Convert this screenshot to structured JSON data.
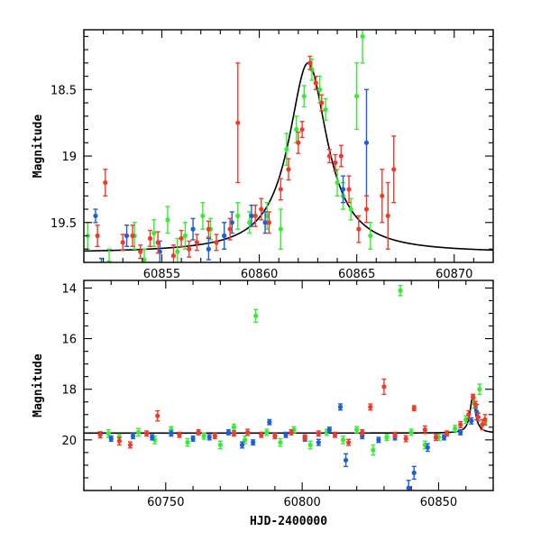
{
  "chart_data": [
    {
      "type": "scatter",
      "ylabel": "Magnitude",
      "xlabel": "",
      "xlim": [
        60851,
        60872
      ],
      "ylim": [
        19.8,
        18.05
      ],
      "inverted_y": true,
      "x_ticks": [
        60855,
        60860,
        60865,
        60870
      ],
      "x_tick_labels": [
        "60855",
        "60860",
        "60865",
        "60870"
      ],
      "y_ticks": [
        18.5,
        19,
        19.5
      ],
      "y_tick_labels": [
        "18.5",
        "19",
        "19.5"
      ],
      "model_curve": {
        "type": "lorentzian",
        "baseline": 19.73,
        "peak": 18.3,
        "t0": 60862.5,
        "width": 1.2,
        "color": "#000000"
      },
      "series_colors": {
        "green": "#33ee33",
        "blue": "#1a5fe0",
        "red": "#f23a2a"
      },
      "series": [
        {
          "color": "green",
          "points": [
            [
              60851.2,
              19.6,
              0.1
            ],
            [
              60851.9,
              19.85,
              0.08
            ],
            [
              60852.3,
              19.8,
              0.1
            ],
            [
              60853.6,
              19.6,
              0.1
            ],
            [
              60854.1,
              19.78,
              0.08
            ],
            [
              60854.6,
              19.58,
              0.1
            ],
            [
              60855.3,
              19.48,
              0.1
            ],
            [
              60855.8,
              19.72,
              0.1
            ],
            [
              60856.2,
              19.6,
              0.1
            ],
            [
              60857.1,
              19.45,
              0.1
            ],
            [
              60857.5,
              19.55,
              0.08
            ],
            [
              60858.2,
              19.6,
              0.1
            ],
            [
              60858.9,
              19.45,
              0.1
            ],
            [
              60859.5,
              19.5,
              0.08
            ],
            [
              60860.4,
              19.45,
              0.1
            ],
            [
              60861.1,
              19.55,
              0.15
            ],
            [
              60861.4,
              18.95,
              0.12
            ],
            [
              60861.9,
              18.8,
              0.1
            ],
            [
              60862.3,
              18.55,
              0.08
            ],
            [
              60862.7,
              18.35,
              0.08
            ],
            [
              60863.1,
              18.5,
              0.1
            ],
            [
              60863.4,
              18.65,
              0.08
            ],
            [
              60864.0,
              19.2,
              0.1
            ],
            [
              60864.3,
              19.3,
              0.1
            ],
            [
              60864.7,
              19.4,
              0.08
            ],
            [
              60865.0,
              18.55,
              0.25
            ],
            [
              60865.3,
              18.1,
              0.2
            ],
            [
              60865.7,
              19.6,
              0.1
            ]
          ]
        },
        {
          "color": "blue",
          "points": [
            [
              60851.6,
              19.45,
              0.05
            ],
            [
              60851.9,
              19.85,
              0.08
            ],
            [
              60853.2,
              19.6,
              0.08
            ],
            [
              60854.9,
              19.72,
              0.08
            ],
            [
              60856.6,
              19.55,
              0.08
            ],
            [
              60857.4,
              19.7,
              0.08
            ],
            [
              60858.2,
              19.6,
              0.1
            ],
            [
              60858.6,
              19.5,
              0.08
            ],
            [
              60859.6,
              19.45,
              0.08
            ],
            [
              60860.3,
              19.5,
              0.08
            ],
            [
              60864.3,
              19.25,
              0.1
            ],
            [
              60865.5,
              18.9,
              0.4
            ]
          ]
        },
        {
          "color": "red",
          "points": [
            [
              60851.7,
              19.6,
              0.08
            ],
            [
              60852.1,
              19.2,
              0.1
            ],
            [
              60853.0,
              19.65,
              0.06
            ],
            [
              60853.5,
              19.6,
              0.08
            ],
            [
              60853.9,
              19.72,
              0.05
            ],
            [
              60854.4,
              19.62,
              0.06
            ],
            [
              60854.8,
              19.65,
              0.08
            ],
            [
              60855.6,
              19.75,
              0.08
            ],
            [
              60856.0,
              19.62,
              0.06
            ],
            [
              60856.4,
              19.7,
              0.06
            ],
            [
              60856.8,
              19.65,
              0.06
            ],
            [
              60857.4,
              19.55,
              0.06
            ],
            [
              60857.8,
              19.65,
              0.06
            ],
            [
              60858.5,
              19.55,
              0.08
            ],
            [
              60858.9,
              18.75,
              0.45
            ],
            [
              60859.8,
              19.45,
              0.08
            ],
            [
              60860.1,
              19.4,
              0.08
            ],
            [
              60860.5,
              19.5,
              0.08
            ],
            [
              60861.1,
              19.25,
              0.08
            ],
            [
              60861.5,
              19.1,
              0.08
            ],
            [
              60862.0,
              18.9,
              0.08
            ],
            [
              60862.2,
              18.8,
              0.06
            ],
            [
              60862.6,
              18.3,
              0.05
            ],
            [
              60862.9,
              18.45,
              0.05
            ],
            [
              60863.2,
              18.6,
              0.06
            ],
            [
              60863.6,
              19.0,
              0.05
            ],
            [
              60863.9,
              19.05,
              0.06
            ],
            [
              60864.2,
              19.0,
              0.08
            ],
            [
              60864.6,
              19.25,
              0.1
            ],
            [
              60865.1,
              19.55,
              0.1
            ],
            [
              60865.5,
              19.4,
              0.1
            ],
            [
              60866.3,
              19.3,
              0.2
            ],
            [
              60866.6,
              19.45,
              0.25
            ],
            [
              60866.9,
              19.1,
              0.25
            ]
          ]
        }
      ]
    },
    {
      "type": "scatter",
      "ylabel": "Magnitude",
      "xlabel": "HJD-2400000",
      "xlim": [
        60720,
        60870
      ],
      "ylim": [
        22,
        13.7
      ],
      "inverted_y": true,
      "x_ticks": [
        60750,
        60800,
        60850
      ],
      "x_tick_labels": [
        "60750",
        "60800",
        "60850"
      ],
      "y_ticks": [
        14,
        16,
        18,
        20
      ],
      "y_tick_labels": [
        "14",
        "16",
        "18",
        "20"
      ],
      "model_curve": {
        "type": "lorentzian",
        "baseline": 19.73,
        "peak": 18.3,
        "t0": 60862.5,
        "width": 1.2,
        "color": "#000000"
      },
      "series_colors": {
        "green": "#33ee33",
        "blue": "#1a5fe0",
        "red": "#f23a2a"
      },
      "series": [
        {
          "color": "green",
          "points": [
            [
              60729,
              19.75,
              0.15
            ],
            [
              60733,
              19.9,
              0.12
            ],
            [
              60740,
              19.7,
              0.15
            ],
            [
              60746,
              20.0,
              0.15
            ],
            [
              60752,
              19.6,
              0.12
            ],
            [
              60758,
              20.1,
              0.15
            ],
            [
              60764,
              19.85,
              0.12
            ],
            [
              60770,
              20.2,
              0.15
            ],
            [
              60775,
              19.5,
              0.12
            ],
            [
              60779,
              20.0,
              0.15
            ],
            [
              60783,
              15.1,
              0.25
            ],
            [
              60787,
              19.7,
              0.12
            ],
            [
              60792,
              20.1,
              0.15
            ],
            [
              60797,
              19.6,
              0.12
            ],
            [
              60803,
              20.2,
              0.15
            ],
            [
              60809,
              19.7,
              0.12
            ],
            [
              60815,
              20.0,
              0.15
            ],
            [
              60820,
              19.6,
              0.12
            ],
            [
              60826,
              20.4,
              0.2
            ],
            [
              60831,
              19.9,
              0.12
            ],
            [
              60836,
              14.1,
              0.2
            ],
            [
              60840,
              19.7,
              0.12
            ],
            [
              60845,
              20.2,
              0.15
            ],
            [
              60850,
              19.9,
              0.12
            ],
            [
              60856,
              19.55,
              0.12
            ],
            [
              60860,
              19.2,
              0.15
            ],
            [
              60863,
              18.55,
              0.2
            ],
            [
              60865,
              18.0,
              0.2
            ],
            [
              60867,
              19.3,
              0.12
            ]
          ]
        },
        {
          "color": "blue",
          "points": [
            [
              60730,
              19.95,
              0.1
            ],
            [
              60738,
              19.85,
              0.1
            ],
            [
              60745,
              19.9,
              0.1
            ],
            [
              60752,
              19.75,
              0.1
            ],
            [
              60760,
              19.95,
              0.1
            ],
            [
              60766,
              19.9,
              0.1
            ],
            [
              60773,
              19.7,
              0.1
            ],
            [
              60778,
              20.2,
              0.12
            ],
            [
              60782,
              20.1,
              0.1
            ],
            [
              60788,
              19.3,
              0.1
            ],
            [
              60794,
              19.8,
              0.1
            ],
            [
              60801,
              19.95,
              0.1
            ],
            [
              60806,
              20.1,
              0.12
            ],
            [
              60810,
              19.6,
              0.1
            ],
            [
              60814,
              18.7,
              0.12
            ],
            [
              60816,
              20.8,
              0.25
            ],
            [
              60822,
              19.85,
              0.1
            ],
            [
              60828,
              20.0,
              0.1
            ],
            [
              60834,
              19.9,
              0.1
            ],
            [
              60839,
              21.9,
              0.3
            ],
            [
              60841,
              21.3,
              0.25
            ],
            [
              60846,
              20.3,
              0.15
            ],
            [
              60852,
              19.9,
              0.1
            ],
            [
              60858,
              19.7,
              0.1
            ],
            [
              60862,
              19.25,
              0.12
            ],
            [
              60864,
              18.9,
              0.3
            ]
          ]
        },
        {
          "color": "red",
          "points": [
            [
              60726,
              19.8,
              0.12
            ],
            [
              60733,
              20.05,
              0.15
            ],
            [
              60737,
              20.2,
              0.12
            ],
            [
              60743,
              19.75,
              0.1
            ],
            [
              60747,
              19.05,
              0.2
            ],
            [
              60755,
              19.8,
              0.1
            ],
            [
              60762,
              19.7,
              0.1
            ],
            [
              60768,
              19.85,
              0.1
            ],
            [
              60775,
              19.75,
              0.1
            ],
            [
              60780,
              19.7,
              0.12
            ],
            [
              60785,
              19.8,
              0.1
            ],
            [
              60790,
              19.85,
              0.1
            ],
            [
              60796,
              19.7,
              0.1
            ],
            [
              60801,
              19.9,
              0.1
            ],
            [
              60806,
              19.75,
              0.1
            ],
            [
              60812,
              19.8,
              0.1
            ],
            [
              60817,
              20.1,
              0.12
            ],
            [
              60822,
              19.7,
              0.1
            ],
            [
              60825,
              18.7,
              0.12
            ],
            [
              60830,
              17.9,
              0.3
            ],
            [
              60834,
              19.8,
              0.1
            ],
            [
              60838,
              19.95,
              0.12
            ],
            [
              60841,
              18.75,
              0.1
            ],
            [
              60845,
              19.6,
              0.15
            ],
            [
              60849,
              19.9,
              0.12
            ],
            [
              60853,
              19.75,
              0.1
            ],
            [
              60858,
              19.4,
              0.12
            ],
            [
              60861,
              19.0,
              0.15
            ],
            [
              60862.6,
              18.3,
              0.1
            ],
            [
              60863.5,
              18.6,
              0.12
            ],
            [
              60864.5,
              19.1,
              0.15
            ],
            [
              60866,
              19.4,
              0.2
            ],
            [
              60867,
              19.2,
              0.2
            ]
          ]
        }
      ]
    }
  ]
}
